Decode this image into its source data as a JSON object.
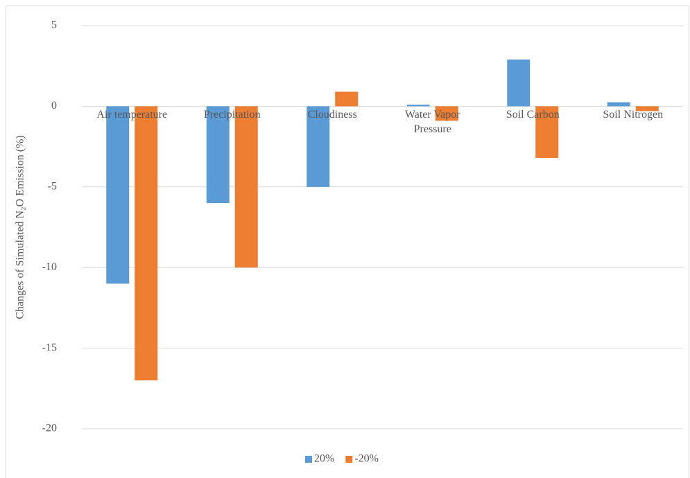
{
  "chart_data": {
    "type": "bar",
    "y_label": "Changes of Simulated N₂O Emission (%)",
    "categories": [
      "Air temperature",
      "Precipitation",
      "Cloudiness",
      "Water Vapor Pressure",
      "Soil Carbon",
      "Soil Nitrogen"
    ],
    "series": [
      {
        "name": "20%",
        "color": "#5b9bd5",
        "values": [
          -11,
          -6,
          -5,
          0.1,
          2.9,
          0.25
        ]
      },
      {
        "name": "-20%",
        "color": "#ed7d31",
        "values": [
          -17,
          -10,
          0.9,
          -0.9,
          -3.2,
          -0.3
        ]
      }
    ],
    "ylim": [
      -20,
      5
    ],
    "yticks": [
      -20,
      -15,
      -10,
      -5,
      0,
      5
    ],
    "grid": true,
    "legend": "bottom"
  }
}
